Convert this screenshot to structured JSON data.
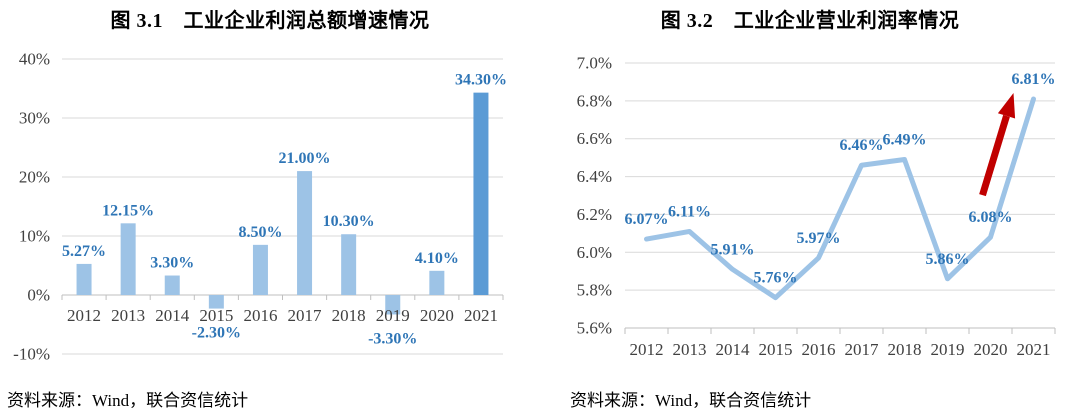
{
  "page": {
    "background": "#FFFFFF"
  },
  "chart_data": [
    {
      "type": "bar",
      "title": "图 3.1　工业企业利润总额增速情况",
      "source": "资料来源：Wind，联合资信统计",
      "categories": [
        "2012",
        "2013",
        "2014",
        "2015",
        "2016",
        "2017",
        "2018",
        "2019",
        "2020",
        "2021"
      ],
      "values": [
        5.27,
        12.15,
        3.3,
        -2.3,
        8.5,
        21.0,
        10.3,
        -3.3,
        4.1,
        34.3
      ],
      "point_labels": [
        "5.27%",
        "12.15%",
        "3.30%",
        "-2.30%",
        "8.50%",
        "21.00%",
        "10.30%",
        "-3.30%",
        "4.10%",
        "34.30%"
      ],
      "xlabel": "",
      "ylabel": "",
      "ylim": [
        -10,
        40
      ],
      "ytick_values": [
        40,
        30,
        20,
        10,
        0,
        -10
      ],
      "ytick_labels": [
        "40%",
        "30%",
        "20%",
        "10%",
        "0%",
        "-10%"
      ],
      "grid": true,
      "legend": "none",
      "highlight_index": 9,
      "colors": {
        "bar": "#9DC3E6",
        "bar_highlight": "#5B9BD5",
        "point_label": "#2E75B6",
        "grid": "#D9D9D9",
        "axis": "#BFBFBF",
        "tick_text": "#404040"
      }
    },
    {
      "type": "line",
      "title": "图 3.2　工业企业营业利润率情况",
      "source": "资料来源：Wind，联合资信统计",
      "categories": [
        "2012",
        "2013",
        "2014",
        "2015",
        "2016",
        "2017",
        "2018",
        "2019",
        "2020",
        "2021"
      ],
      "values": [
        6.07,
        6.11,
        5.91,
        5.76,
        5.97,
        6.46,
        6.49,
        5.86,
        6.08,
        6.81
      ],
      "point_labels": [
        "6.07%",
        "6.11%",
        "5.91%",
        "5.76%",
        "5.97%",
        "6.46%",
        "6.49%",
        "5.86%",
        "6.08%",
        "6.81%"
      ],
      "xlabel": "",
      "ylabel": "",
      "ylim": [
        5.6,
        7.0
      ],
      "ytick_values": [
        7.0,
        6.8,
        6.6,
        6.4,
        6.2,
        6.0,
        5.8,
        5.6
      ],
      "ytick_labels": [
        "7.0%",
        "6.8%",
        "6.6%",
        "6.4%",
        "6.2%",
        "6.0%",
        "5.8%",
        "5.6%"
      ],
      "grid": true,
      "legend": "none",
      "annotation": {
        "type": "arrow-up",
        "color": "#C00000",
        "from_category": "2020",
        "to_category": "2021"
      },
      "colors": {
        "line": "#9DC3E6",
        "point_label": "#2E75B6",
        "grid": "#D9D9D9",
        "axis": "#BFBFBF",
        "tick_text": "#404040"
      }
    }
  ]
}
